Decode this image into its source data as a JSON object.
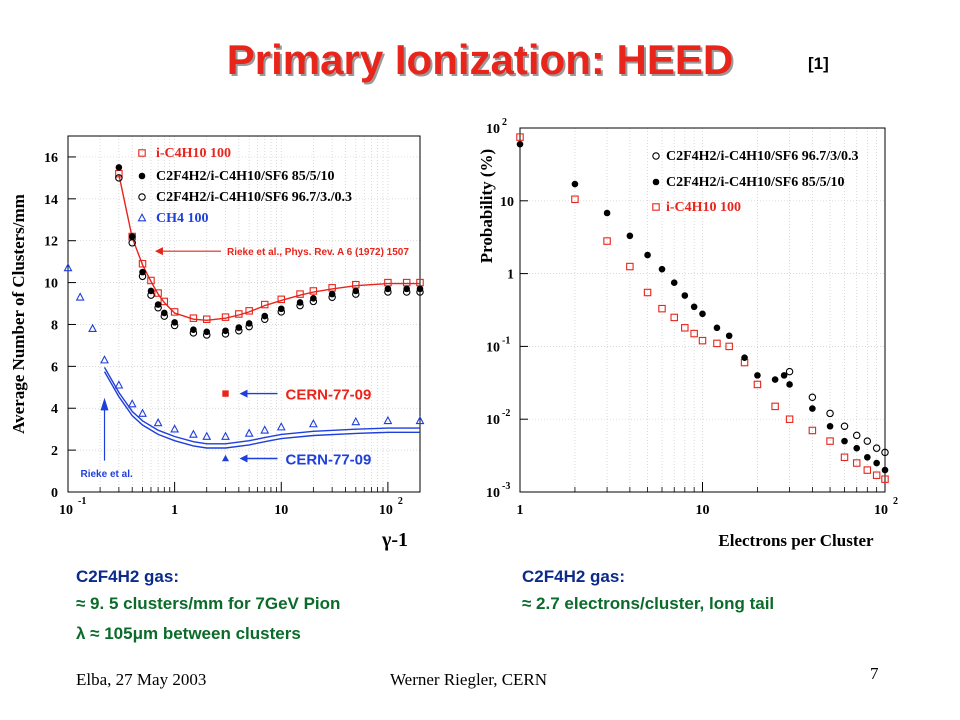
{
  "title": "Primary Ionization: HEED",
  "reference": "[1]",
  "chart_data": [
    {
      "type": "scatter",
      "xlabel": "γ-1",
      "ylabel": "Average Number of Clusters/mm",
      "xscale": "log",
      "xlim": [
        0.1,
        200
      ],
      "ylim": [
        0,
        17
      ],
      "yticks": [
        0,
        2,
        4,
        6,
        8,
        10,
        12,
        14,
        16
      ],
      "legend": [
        {
          "label": "i-C4H10 100",
          "color": "#e8241b",
          "marker": "open-square"
        },
        {
          "label": "C2F4H2/i-C4H10/SF6 85/5/10",
          "color": "#000000",
          "marker": "filled-circle"
        },
        {
          "label": "C2F4H2/i-C4H10/SF6 96.7/3./0.3",
          "color": "#000000",
          "marker": "open-circle"
        },
        {
          "label": "CH4 100",
          "color": "#1f3fdd",
          "marker": "open-triangle"
        }
      ],
      "series": [
        {
          "name": "i-C4H10 100",
          "color": "#e8241b",
          "x": [
            0.3,
            0.4,
            0.5,
            0.6,
            0.7,
            0.8,
            1,
            1.5,
            2,
            3,
            4,
            5,
            7,
            10,
            15,
            20,
            30,
            50,
            100,
            150,
            200
          ],
          "y": [
            15.2,
            12.2,
            10.9,
            10.1,
            9.5,
            9.1,
            8.6,
            8.3,
            8.25,
            8.35,
            8.5,
            8.65,
            8.95,
            9.2,
            9.45,
            9.6,
            9.75,
            9.9,
            10.0,
            10.0,
            10.0
          ]
        },
        {
          "name": "C2F4H2/i-C4H10/SF6 85/5/10",
          "color": "#000000",
          "x": [
            0.3,
            0.4,
            0.5,
            0.6,
            0.7,
            0.8,
            1,
            1.5,
            2,
            3,
            4,
            5,
            7,
            10,
            15,
            20,
            30,
            50,
            100,
            150,
            200
          ],
          "y": [
            15.5,
            12.2,
            10.5,
            9.6,
            8.95,
            8.55,
            8.1,
            7.75,
            7.65,
            7.7,
            7.85,
            8.05,
            8.4,
            8.75,
            9.05,
            9.25,
            9.45,
            9.6,
            9.7,
            9.7,
            9.7
          ]
        },
        {
          "name": "C2F4H2/i-C4H10/SF6 96.7/3./0.3",
          "color": "#000000",
          "x": [
            0.3,
            0.4,
            0.5,
            0.6,
            0.7,
            0.8,
            1,
            1.5,
            2,
            3,
            4,
            5,
            7,
            10,
            15,
            20,
            30,
            50,
            100,
            150,
            200
          ],
          "y": [
            15.0,
            11.9,
            10.3,
            9.4,
            8.8,
            8.4,
            7.95,
            7.6,
            7.5,
            7.55,
            7.7,
            7.9,
            8.25,
            8.6,
            8.9,
            9.1,
            9.3,
            9.45,
            9.55,
            9.55,
            9.55
          ]
        },
        {
          "name": "CH4 100",
          "color": "#1f3fdd",
          "x": [
            0.1,
            0.13,
            0.17,
            0.22,
            0.3,
            0.4,
            0.5,
            0.7,
            1,
            1.5,
            2,
            3,
            5,
            7,
            10,
            20,
            50,
            100,
            200
          ],
          "y": [
            10.7,
            9.3,
            7.8,
            6.3,
            5.1,
            4.2,
            3.75,
            3.3,
            3.0,
            2.75,
            2.65,
            2.65,
            2.8,
            2.95,
            3.1,
            3.25,
            3.35,
            3.4,
            3.4
          ]
        }
      ],
      "reference_points": [
        {
          "label": "CERN-77-09",
          "x": 3,
          "y": 4.7,
          "color": "#e8241b",
          "marker": "filled-square"
        },
        {
          "label": "CERN-77-09",
          "x": 3,
          "y": 1.6,
          "color": "#1f3fdd",
          "marker": "filled-triangle"
        }
      ],
      "annotations": [
        "Rieke et al., Phys. Rev. A 6 (1972) 1507",
        "Rieke et al."
      ]
    },
    {
      "type": "scatter",
      "xlabel": "Electrons per Cluster",
      "ylabel": "Probability (%)",
      "xscale": "log",
      "yscale": "log",
      "xlim": [
        1,
        100
      ],
      "ylim": [
        0.001,
        100
      ],
      "legend": [
        {
          "label": "C2F4H2/i-C4H10/SF6 96.7/3/0.3",
          "color": "#000000",
          "marker": "open-circle"
        },
        {
          "label": "C2F4H2/i-C4H10/SF6 85/5/10",
          "color": "#000000",
          "marker": "filled-circle"
        },
        {
          "label": "i-C4H10 100",
          "color": "#e8241b",
          "marker": "open-square"
        }
      ],
      "series": [
        {
          "name": "i-C4H10 100",
          "color": "#e8241b",
          "x": [
            1,
            2,
            3,
            4,
            5,
            6,
            7,
            8,
            9,
            10,
            12,
            14,
            17,
            20,
            25,
            30,
            40,
            50,
            60,
            70,
            80,
            90,
            100
          ],
          "y": [
            75,
            10.5,
            2.8,
            1.25,
            0.55,
            0.33,
            0.25,
            0.18,
            0.15,
            0.12,
            0.11,
            0.1,
            0.06,
            0.03,
            0.015,
            0.01,
            0.007,
            0.005,
            0.003,
            0.0025,
            0.002,
            0.0017,
            0.0015
          ]
        },
        {
          "name": "C2F4H2/i-C4H10/SF6 85/5/10",
          "color": "#000000",
          "x": [
            1,
            2,
            3,
            4,
            5,
            6,
            7,
            8,
            9,
            10,
            12,
            14,
            17,
            20,
            25,
            28,
            30,
            40,
            50,
            60,
            70,
            80,
            90,
            100
          ],
          "y": [
            60,
            17,
            6.8,
            3.3,
            1.8,
            1.15,
            0.75,
            0.5,
            0.35,
            0.28,
            0.18,
            0.14,
            0.07,
            0.04,
            0.035,
            0.04,
            0.03,
            0.014,
            0.008,
            0.005,
            0.004,
            0.003,
            0.0025,
            0.002
          ]
        },
        {
          "name": "C2F4H2/i-C4H10/SF6 96.7/3/0.3",
          "color": "#000000",
          "x": [
            30,
            40,
            50,
            60,
            70,
            80,
            90,
            100
          ],
          "y": [
            0.045,
            0.02,
            0.012,
            0.008,
            0.006,
            0.005,
            0.004,
            0.0035
          ]
        }
      ]
    }
  ],
  "left_text": {
    "gas": "C2F4H2 gas:",
    "line1": "≈ 9. 5 clusters/mm for 7GeV Pion",
    "line2": "λ ≈ 105μm between clusters"
  },
  "right_text": {
    "gas": "C2F4H2 gas:",
    "line1": "≈ 2.7 electrons/cluster, long tail"
  },
  "footer": {
    "left": "Elba, 27 May 2003",
    "center": "Werner Riegler, CERN",
    "page": "7"
  }
}
